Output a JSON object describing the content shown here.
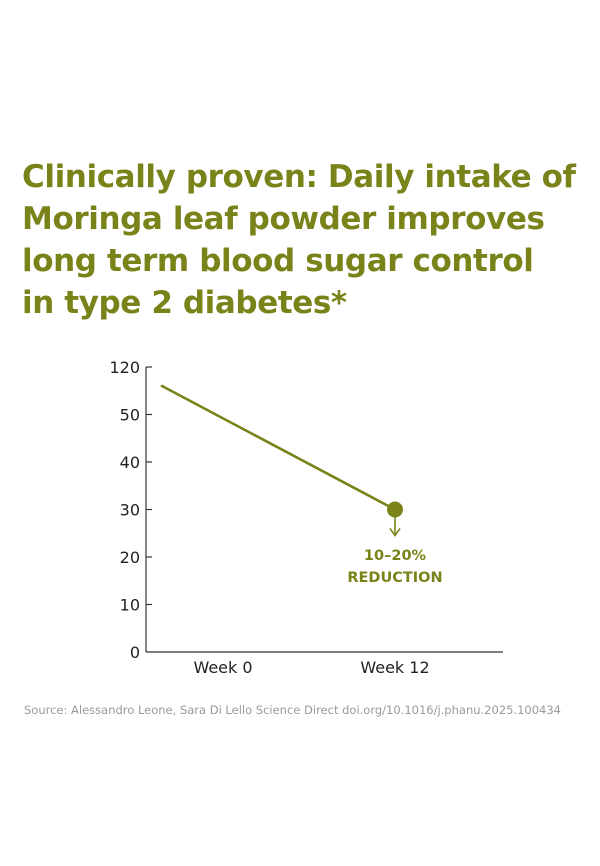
{
  "headline": {
    "lines": [
      "Clinically proven: Daily intake of",
      "Moringa leaf powder improves",
      "long term blood sugar control",
      "in type 2 diabetes*"
    ]
  },
  "chart_data": {
    "type": "line",
    "categories": [
      "Week 0",
      "Week 12"
    ],
    "x": [
      "Week 0",
      "Week 12"
    ],
    "series": [
      {
        "values": [
          56,
          30
        ]
      }
    ],
    "y_tick_labels": [
      "0",
      "10",
      "20",
      "30",
      "40",
      "50",
      "120"
    ],
    "annotation": {
      "line1": "10–20%",
      "line2": "REDUCTION"
    },
    "title": "",
    "xlabel": "",
    "ylabel": "",
    "grid": false,
    "colors": {
      "line": "#7a821a",
      "axis": "#333333"
    }
  },
  "source": "Source: Alessandro Leone, Sara Di Lello Science Direct doi.org/10.1016/j.phanu.2025.100434"
}
